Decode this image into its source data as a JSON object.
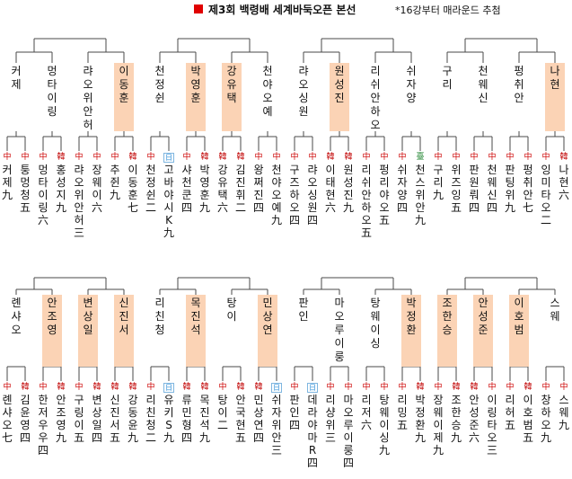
{
  "header": {
    "title": "제3회 백령배 세계바둑오픈 본선",
    "note": "*16강부터 매라운드 추첨"
  },
  "colors": {
    "winner_highlight": "#fbd3b5",
    "line": "#4a4a4a",
    "title_mark": "#e00000"
  },
  "top_half": {
    "round32": [
      {
        "name": "커제",
        "winner": false
      },
      {
        "name": "멍타이링",
        "winner": false
      },
      {
        "name": "랴오위안허",
        "winner": false
      },
      {
        "name": "이동훈",
        "winner": true
      },
      {
        "name": "천정쉰",
        "winner": false
      },
      {
        "name": "박영훈",
        "winner": true
      },
      {
        "name": "강유택",
        "winner": true
      },
      {
        "name": "천야오예",
        "winner": false
      },
      {
        "name": "랴오싱원",
        "winner": false
      },
      {
        "name": "원성진",
        "winner": true
      },
      {
        "name": "리쉬안하오",
        "winner": false
      },
      {
        "name": "쉬자양",
        "winner": false
      },
      {
        "name": "구리",
        "winner": false
      },
      {
        "name": "천웨신",
        "winner": false
      },
      {
        "name": "펑취안",
        "winner": false
      },
      {
        "name": "나현",
        "winner": true
      }
    ],
    "round64": [
      {
        "name": "커제九",
        "flag": "cn"
      },
      {
        "name": "퉁멍청五",
        "flag": "cn"
      },
      {
        "name": "멍타이링六",
        "flag": "cn"
      },
      {
        "name": "홍성지九",
        "flag": "kr"
      },
      {
        "name": "랴오위안허三",
        "flag": "cn"
      },
      {
        "name": "장웨이六",
        "flag": "cn"
      },
      {
        "name": "추쥔九",
        "flag": "cn"
      },
      {
        "name": "이동훈七",
        "flag": "kr"
      },
      {
        "name": "천정쉰二",
        "flag": "cn"
      },
      {
        "name": "고바야시K九",
        "flag": "jp"
      },
      {
        "name": "샤천쿤四",
        "flag": "cn"
      },
      {
        "name": "박영훈九",
        "flag": "kr"
      },
      {
        "name": "강유택六",
        "flag": "kr"
      },
      {
        "name": "김진휘二",
        "flag": "kr"
      },
      {
        "name": "왕쩌진四",
        "flag": "cn"
      },
      {
        "name": "천야오예九",
        "flag": "cn"
      },
      {
        "name": "구즈하오四",
        "flag": "cn"
      },
      {
        "name": "랴오싱원四",
        "flag": "cn"
      },
      {
        "name": "이태현六",
        "flag": "kr"
      },
      {
        "name": "원성진九",
        "flag": "kr"
      },
      {
        "name": "리쉬안하오五",
        "flag": "cn"
      },
      {
        "name": "펑리야오五",
        "flag": "cn"
      },
      {
        "name": "쉬자양四",
        "flag": "cn"
      },
      {
        "name": "천스위안九",
        "flag": "tw"
      },
      {
        "name": "구리九",
        "flag": "cn"
      },
      {
        "name": "위즈잉五",
        "flag": "cn"
      },
      {
        "name": "판원뤄四",
        "flag": "cn"
      },
      {
        "name": "천웨신四",
        "flag": "cn"
      },
      {
        "name": "판팅위九",
        "flag": "cn"
      },
      {
        "name": "펑취안七",
        "flag": "cn"
      },
      {
        "name": "잉미타오二",
        "flag": "cn"
      },
      {
        "name": "나현六",
        "flag": "kr"
      }
    ]
  },
  "bottom_half": {
    "round32": [
      {
        "name": "롄샤오",
        "winner": false
      },
      {
        "name": "안조영",
        "winner": true
      },
      {
        "name": "변상일",
        "winner": true
      },
      {
        "name": "신진서",
        "winner": true
      },
      {
        "name": "리친청",
        "winner": false
      },
      {
        "name": "목진석",
        "winner": true
      },
      {
        "name": "탕이",
        "winner": false
      },
      {
        "name": "민상연",
        "winner": true
      },
      {
        "name": "판인",
        "winner": false
      },
      {
        "name": "마오루이룽",
        "winner": false
      },
      {
        "name": "탕웨이싱",
        "winner": false
      },
      {
        "name": "박정환",
        "winner": true
      },
      {
        "name": "조한승",
        "winner": true
      },
      {
        "name": "안성준",
        "winner": true
      },
      {
        "name": "이호범",
        "winner": true
      },
      {
        "name": "스웨",
        "winner": false
      }
    ],
    "round64": [
      {
        "name": "롄샤오七",
        "flag": "cn"
      },
      {
        "name": "김윤영四",
        "flag": "kr"
      },
      {
        "name": "한저우우四",
        "flag": "cn"
      },
      {
        "name": "안조영九",
        "flag": "kr"
      },
      {
        "name": "구링이五",
        "flag": "cn"
      },
      {
        "name": "변상일四",
        "flag": "kr"
      },
      {
        "name": "신진서五",
        "flag": "kr"
      },
      {
        "name": "강동윤九",
        "flag": "kr"
      },
      {
        "name": "리친청二",
        "flag": "cn"
      },
      {
        "name": "유키S九",
        "flag": "jp"
      },
      {
        "name": "류민형四",
        "flag": "kr"
      },
      {
        "name": "목진석九",
        "flag": "kr"
      },
      {
        "name": "탕이二",
        "flag": "cn"
      },
      {
        "name": "안국현五",
        "flag": "kr"
      },
      {
        "name": "민상연四",
        "flag": "kr"
      },
      {
        "name": "쉬자위안三",
        "flag": "jp"
      },
      {
        "name": "판인四",
        "flag": "cn"
      },
      {
        "name": "데라야마R四",
        "flag": "jp"
      },
      {
        "name": "리샹위三",
        "flag": "cn"
      },
      {
        "name": "마오루이룽四",
        "flag": "cn"
      },
      {
        "name": "리저六",
        "flag": "cn"
      },
      {
        "name": "탕웨이싱九",
        "flag": "cn"
      },
      {
        "name": "리밍五",
        "flag": "cn"
      },
      {
        "name": "박정환九",
        "flag": "kr"
      },
      {
        "name": "장웨이제九",
        "flag": "cn"
      },
      {
        "name": "조한승九",
        "flag": "kr"
      },
      {
        "name": "안성준六",
        "flag": "kr"
      },
      {
        "name": "이링타오三",
        "flag": "cn"
      },
      {
        "name": "리허五",
        "flag": "cn"
      },
      {
        "name": "이호범五",
        "flag": "kr"
      },
      {
        "name": "창하오九",
        "flag": "cn"
      },
      {
        "name": "스웨九",
        "flag": "cn"
      }
    ]
  }
}
